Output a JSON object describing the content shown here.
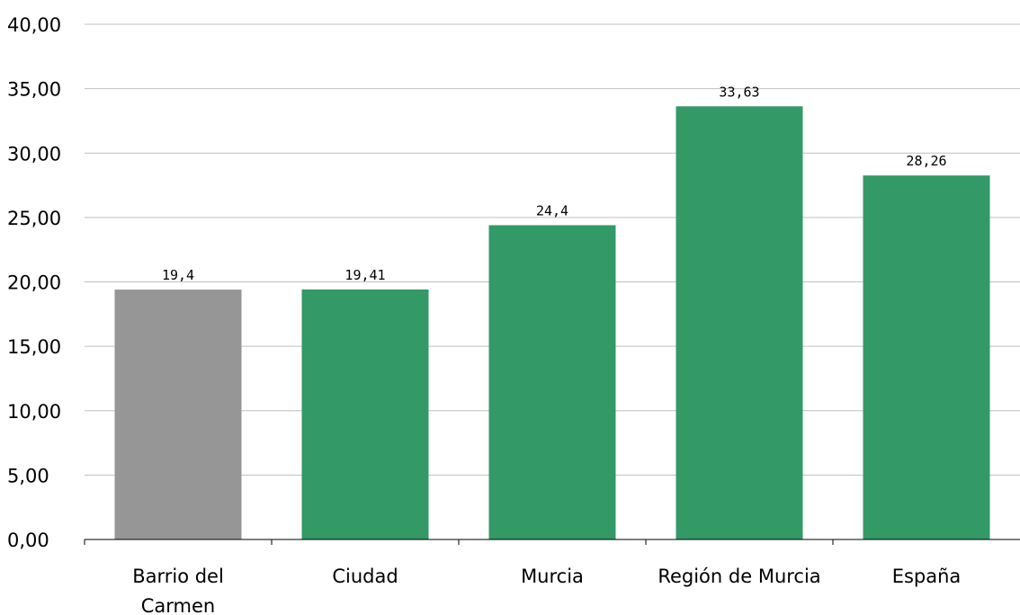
{
  "chart_data": {
    "type": "bar",
    "categories": [
      [
        "Barrio del",
        "Carmen"
      ],
      [
        "Ciudad"
      ],
      [
        "Murcia"
      ],
      [
        "Región de Murcia"
      ],
      [
        "España"
      ]
    ],
    "values": [
      19.4,
      19.41,
      24.4,
      33.63,
      28.26
    ],
    "data_labels": [
      "19,4",
      "19,41",
      "24,4",
      "33,63",
      "28,26"
    ],
    "bar_colors": [
      "#969696",
      "#339966",
      "#339966",
      "#339966",
      "#339966"
    ],
    "title": "",
    "xlabel": "",
    "ylabel": "",
    "ylim": [
      0,
      40
    ],
    "yticks": [
      0,
      5,
      10,
      15,
      20,
      25,
      30,
      35,
      40
    ],
    "ytick_labels": [
      "0,00",
      "5,00",
      "10,00",
      "15,00",
      "20,00",
      "25,00",
      "30,00",
      "35,00",
      "40,00"
    ],
    "grid": true,
    "legend": "none",
    "gridline_color": "#c0c0c0",
    "axis_color": "#000000"
  }
}
